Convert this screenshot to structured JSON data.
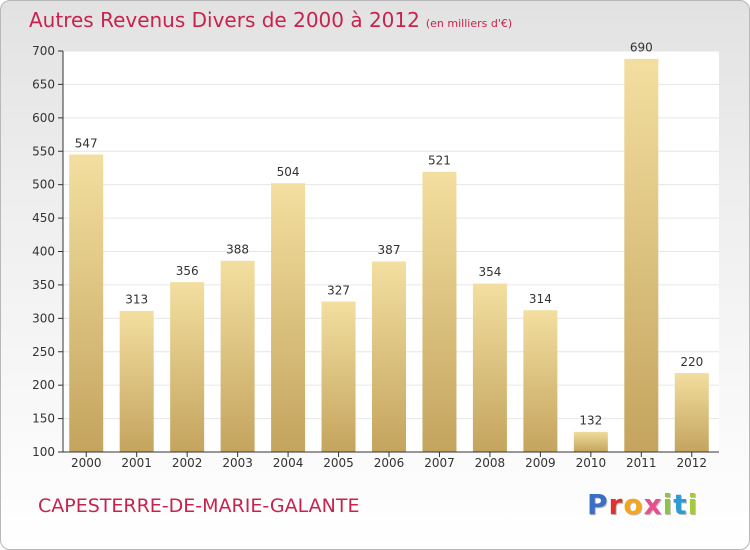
{
  "header": {
    "title": "Autres Revenus Divers de 2000 à 2012",
    "unit_note": "(en milliers d'€)"
  },
  "footer": {
    "location": "CAPESTERRE-DE-MARIE-GALANTE",
    "brand": "Proxiti",
    "brand_colors": [
      "#3a6fc4",
      "#e0322d",
      "#f4a41d",
      "#e84f8b",
      "#8bc34a",
      "#2f9bd4",
      "#a5c93a"
    ]
  },
  "colors": {
    "title": "#c8234f",
    "bar_light": "#f3dfa0",
    "bar_dark": "#c4a45e",
    "grid": "#e6e6e6",
    "axis": "#333333"
  },
  "chart_data": {
    "type": "bar",
    "categories": [
      "2000",
      "2001",
      "2002",
      "2003",
      "2004",
      "2005",
      "2006",
      "2007",
      "2008",
      "2009",
      "2010",
      "2011",
      "2012"
    ],
    "values": [
      547,
      313,
      356,
      388,
      504,
      327,
      387,
      521,
      354,
      314,
      132,
      690,
      220
    ],
    "title": "Autres Revenus Divers de 2000 à 2012",
    "xlabel": "",
    "ylabel": "",
    "ylim": [
      100,
      700
    ],
    "yticks": [
      100,
      150,
      200,
      250,
      300,
      350,
      400,
      450,
      500,
      550,
      600,
      650,
      700
    ],
    "data_labels": true,
    "grid": true,
    "legend": "none"
  }
}
